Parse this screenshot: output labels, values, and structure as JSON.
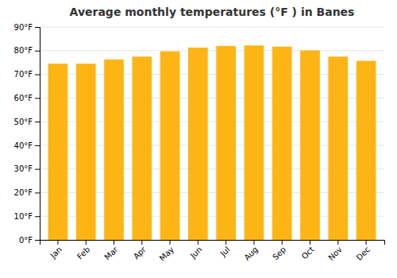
{
  "chart_data": {
    "type": "bar",
    "title": "Average monthly temperatures (°F ) in Banes",
    "categories": [
      "Jan",
      "Feb",
      "Mar",
      "Apr",
      "May",
      "Jun",
      "Jul",
      "Aug",
      "Sep",
      "Oct",
      "Nov",
      "Dec"
    ],
    "values": [
      74.5,
      74.5,
      76.3,
      77.5,
      79.7,
      81.3,
      82.0,
      82.2,
      81.7,
      80.1,
      77.5,
      75.7
    ],
    "color": "#FDB515",
    "ylim": [
      0,
      90
    ],
    "yticks": [
      {
        "value": 0,
        "label": "0°F"
      },
      {
        "value": 10,
        "label": "10°F"
      },
      {
        "value": 20,
        "label": "20°F"
      },
      {
        "value": 30,
        "label": "30°F"
      },
      {
        "value": 40,
        "label": "40°F"
      },
      {
        "value": 50,
        "label": "50°F"
      },
      {
        "value": 60,
        "label": "60°F"
      },
      {
        "value": 70,
        "label": "70°F"
      },
      {
        "value": 80,
        "label": "80°F"
      },
      {
        "value": 90,
        "label": "90°F"
      }
    ],
    "grid": true
  }
}
